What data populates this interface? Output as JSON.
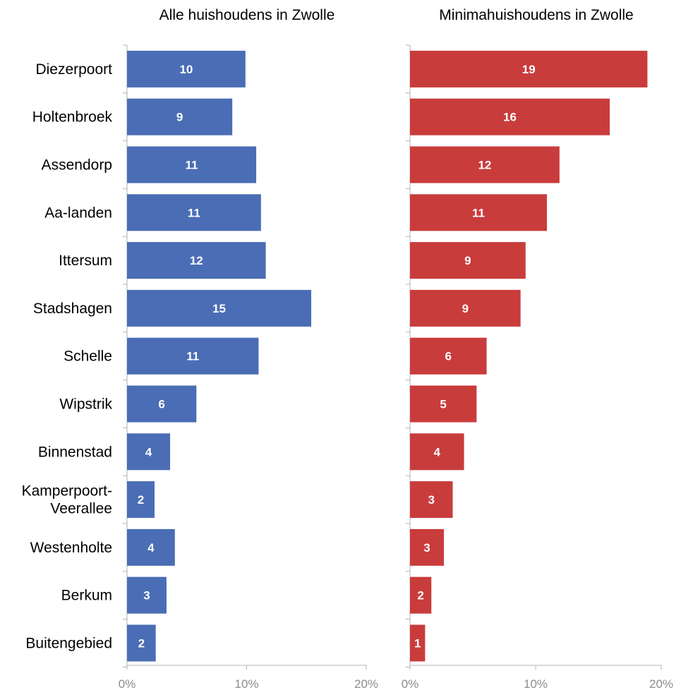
{
  "chart_data": [
    {
      "type": "bar",
      "orientation": "horizontal",
      "title": "Alle huishoudens in Zwolle",
      "categories": [
        "Diezerpoort",
        "Holtenbroek",
        "Assendorp",
        "Aa-landen",
        "Ittersum",
        "Stadshagen",
        "Schelle",
        "Wipstrik",
        "Binnenstad",
        "Kamperpoort-Veerallee",
        "Westenholte",
        "Berkum",
        "Buitengebied"
      ],
      "category_label_lines": [
        [
          "Diezerpoort"
        ],
        [
          "Holtenbroek"
        ],
        [
          "Assendorp"
        ],
        [
          "Aa-landen"
        ],
        [
          "Ittersum"
        ],
        [
          "Stadshagen"
        ],
        [
          "Schelle"
        ],
        [
          "Wipstrik"
        ],
        [
          "Binnenstad"
        ],
        [
          "Kamperpoort-",
          "Veerallee"
        ],
        [
          "Westenholte"
        ],
        [
          "Berkum"
        ],
        [
          "Buitengebied"
        ]
      ],
      "values": [
        9.9,
        8.8,
        10.8,
        11.2,
        11.6,
        15.4,
        11.0,
        5.8,
        3.6,
        2.3,
        4.0,
        3.3,
        2.4
      ],
      "data_labels": [
        "10",
        "9",
        "11",
        "11",
        "12",
        "15",
        "11",
        "6",
        "4",
        "2",
        "4",
        "3",
        "2"
      ],
      "xlim": [
        0,
        20
      ],
      "x_ticks": [
        "0%",
        "10%",
        "20%"
      ],
      "color": "#4a6db5",
      "grid": false
    },
    {
      "type": "bar",
      "orientation": "horizontal",
      "title": "Minimahuishoudens in Zwolle",
      "categories": [
        "Diezerpoort",
        "Holtenbroek",
        "Assendorp",
        "Aa-landen",
        "Ittersum",
        "Stadshagen",
        "Schelle",
        "Wipstrik",
        "Binnenstad",
        "Kamperpoort-Veerallee",
        "Westenholte",
        "Berkum",
        "Buitengebied"
      ],
      "values": [
        18.9,
        15.9,
        11.9,
        10.9,
        9.2,
        8.8,
        6.1,
        5.3,
        4.3,
        3.4,
        2.7,
        1.7,
        1.2
      ],
      "data_labels": [
        "19",
        "16",
        "12",
        "11",
        "9",
        "9",
        "6",
        "5",
        "4",
        "3",
        "3",
        "2",
        "1"
      ],
      "xlim": [
        0,
        20
      ],
      "x_ticks": [
        "0%",
        "10%",
        "20%"
      ],
      "color": "#c93c3c",
      "grid": false
    }
  ]
}
